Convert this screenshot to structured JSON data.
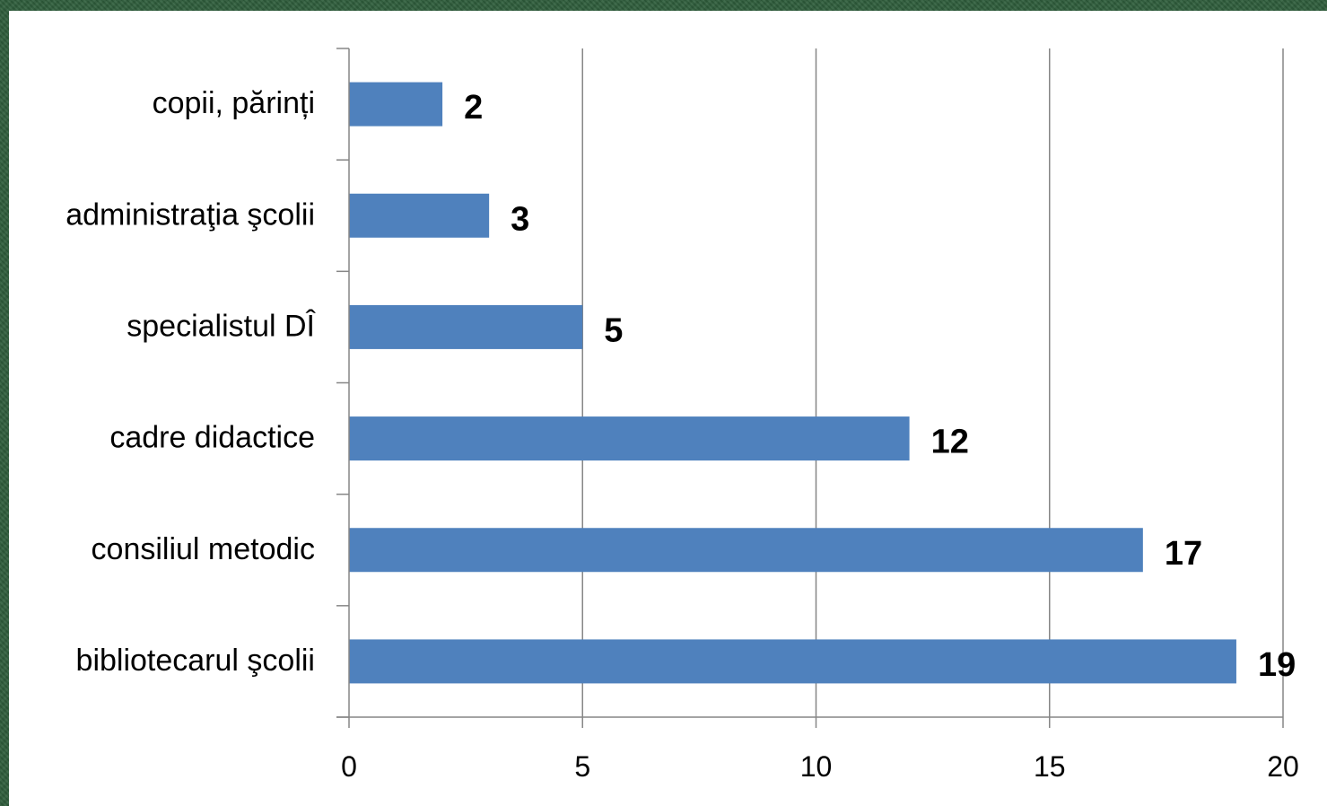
{
  "chart_data": {
    "type": "bar",
    "orientation": "horizontal",
    "categories": [
      "copii, părinți",
      "administraţia şcolii",
      "specialistul DÎ",
      "cadre didactice",
      "consiliul metodic",
      "bibliotecarul şcolii"
    ],
    "values": [
      2,
      3,
      5,
      12,
      17,
      19
    ],
    "data_labels": [
      "2",
      "3",
      "5",
      "12",
      "17",
      "19"
    ],
    "xlim": [
      0,
      20
    ],
    "x_ticks": [
      "0",
      "5",
      "10",
      "15",
      "20"
    ],
    "x_tick_values": [
      0,
      5,
      10,
      15,
      20
    ],
    "grid": "vertical",
    "legend": "none",
    "colors": {
      "bar": "#4f81bd",
      "grid": "#868686",
      "axis": "#868686",
      "text": "#000000",
      "background": "#ffffff",
      "frame": "#2f5e3c"
    }
  }
}
